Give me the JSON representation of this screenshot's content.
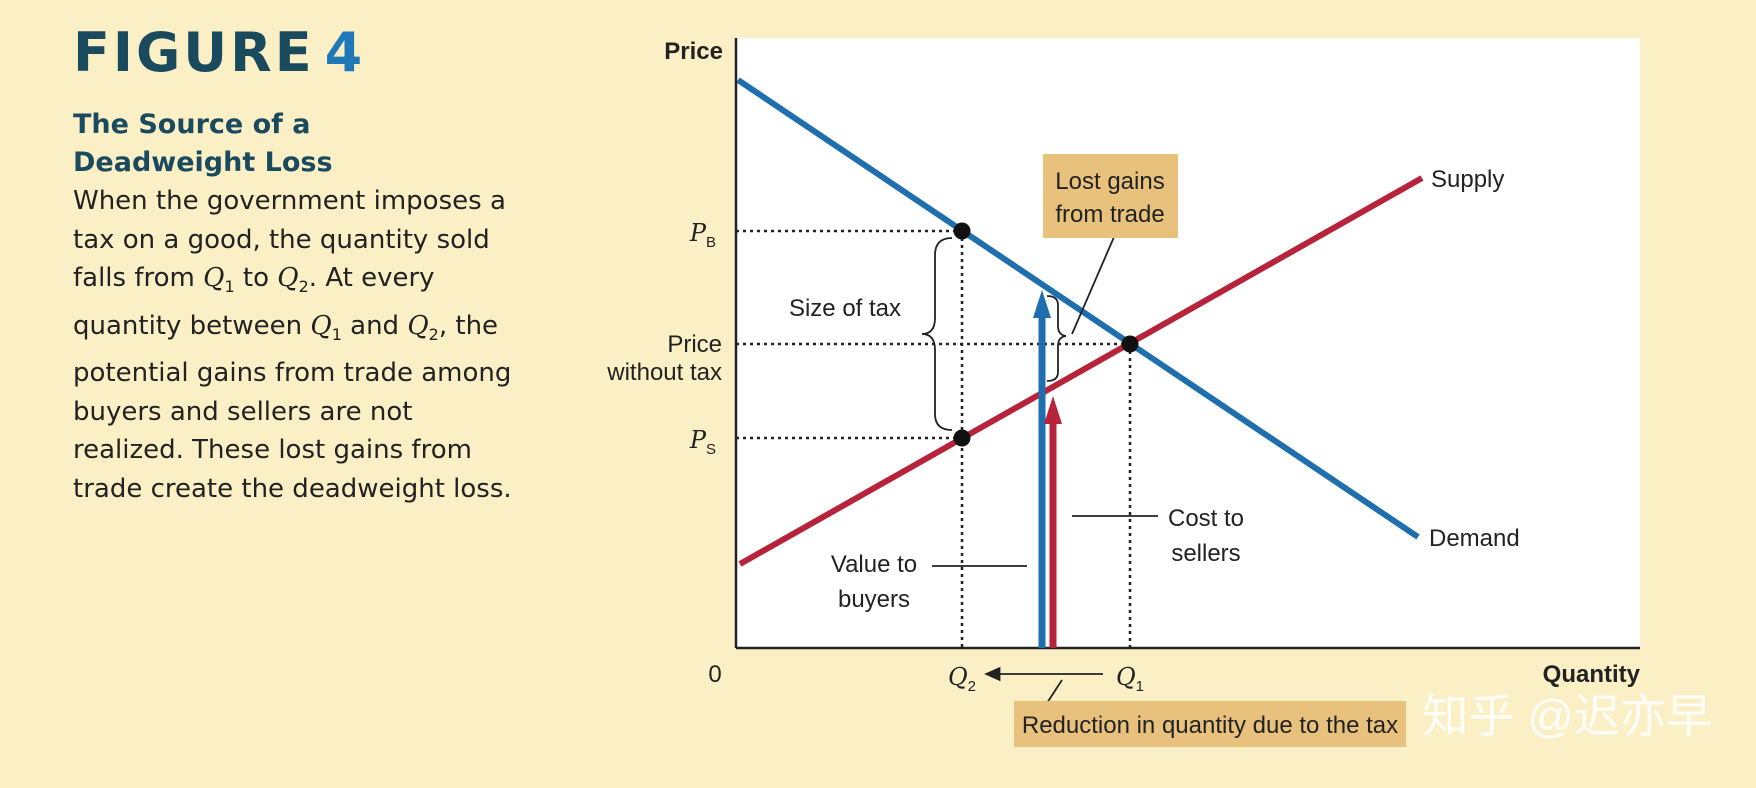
{
  "figure": {
    "label": "FIGURE",
    "number": "4"
  },
  "caption": {
    "heading": "The Source of a Deadweight Loss",
    "body": [
      {
        "t": "When the government imposes a tax on a good, the quantity sold falls from "
      },
      {
        "t": "Q",
        "i": true
      },
      {
        "t": "1",
        "sub": true
      },
      {
        "t": " to "
      },
      {
        "t": "Q",
        "i": true
      },
      {
        "t": "2",
        "sub": true
      },
      {
        "t": ". At every quantity between "
      },
      {
        "t": "Q",
        "i": true
      },
      {
        "t": "1",
        "sub": true
      },
      {
        "t": " and "
      },
      {
        "t": "Q",
        "i": true
      },
      {
        "t": "2",
        "sub": true
      },
      {
        "t": ", the potential gains from trade among buyers and sellers are not realized. These lost gains from trade create the deadweight loss."
      }
    ]
  },
  "chart_data": {
    "type": "diagram",
    "y_axis_label": "Price",
    "x_axis_label": "Quantity",
    "origin_label": "0",
    "supply_label": "Supply",
    "demand_label": "Demand",
    "price_labels": {
      "pb": {
        "main": "P",
        "sub": "B"
      },
      "p0_line1": "Price",
      "p0_line2": "without tax",
      "ps": {
        "main": "P",
        "sub": "S"
      }
    },
    "quantity_labels": {
      "q2": {
        "main": "Q",
        "sub": "2"
      },
      "q1": {
        "main": "Q",
        "sub": "1"
      }
    },
    "annotations": {
      "size_of_tax": "Size of tax",
      "lost_gains": [
        "Lost gains",
        "from trade"
      ],
      "value_to_buyers": [
        "Value to",
        "buyers"
      ],
      "cost_to_sellers": [
        "Cost to",
        "sellers"
      ],
      "reduction": "Reduction in quantity due to the tax"
    },
    "colors": {
      "demand": "#1f6fae",
      "supply": "#b7233a",
      "label_box": "#e8c27c",
      "background": "#fbefc6"
    }
  },
  "watermark": "知乎 @迟亦早"
}
